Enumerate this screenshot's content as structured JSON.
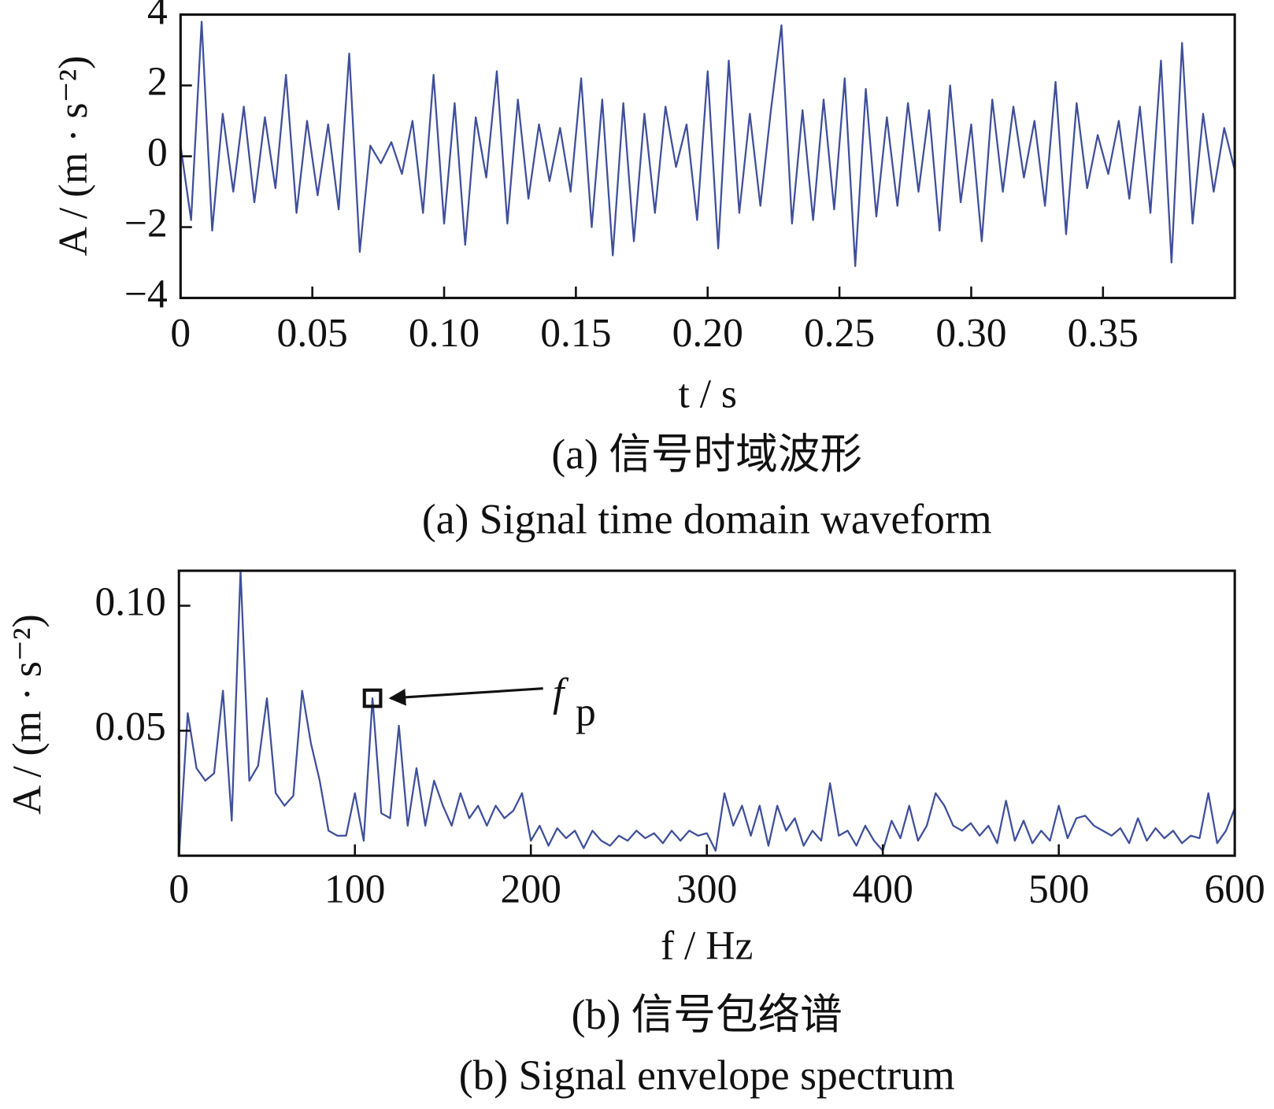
{
  "chart_data": [
    {
      "type": "line",
      "color": "#3f4f9a",
      "xlim": [
        0,
        0.4
      ],
      "ylim": [
        -4,
        4
      ],
      "xticks": [
        0,
        {
          "value": 0.05,
          "label": "0.05"
        },
        {
          "value": 0.1,
          "label": "0.10"
        },
        {
          "value": 0.15,
          "label": "0.15"
        },
        {
          "value": 0.2,
          "label": "0.20"
        },
        {
          "value": 0.25,
          "label": "0.25"
        },
        {
          "value": 0.3,
          "label": "0.30"
        },
        {
          "value": 0.35,
          "label": "0.35"
        }
      ],
      "yticks": [
        {
          "value": -4,
          "label": "−4"
        },
        {
          "value": -2,
          "label": "−2"
        },
        0,
        2,
        4
      ],
      "xlabel": "t / s",
      "ylabel": "A / (m · s⁻²)",
      "caption_cn": "(a)  信号时域波形",
      "caption_en": "(a)  Signal time domain waveform",
      "x": [
        0,
        0.004,
        0.008,
        0.012,
        0.016,
        0.02,
        0.024,
        0.028,
        0.032,
        0.036,
        0.04,
        0.044,
        0.048,
        0.052,
        0.056,
        0.06,
        0.064,
        0.068,
        0.072,
        0.076,
        0.08,
        0.084,
        0.088,
        0.092,
        0.096,
        0.1,
        0.104,
        0.108,
        0.112,
        0.116,
        0.12,
        0.124,
        0.128,
        0.132,
        0.136,
        0.14,
        0.144,
        0.148,
        0.152,
        0.156,
        0.16,
        0.164,
        0.168,
        0.172,
        0.176,
        0.18,
        0.184,
        0.188,
        0.192,
        0.196,
        0.2,
        0.204,
        0.208,
        0.212,
        0.216,
        0.22,
        0.224,
        0.228,
        0.232,
        0.236,
        0.24,
        0.244,
        0.248,
        0.252,
        0.256,
        0.26,
        0.264,
        0.268,
        0.272,
        0.276,
        0.28,
        0.284,
        0.288,
        0.292,
        0.296,
        0.3,
        0.304,
        0.308,
        0.312,
        0.316,
        0.32,
        0.324,
        0.328,
        0.332,
        0.336,
        0.34,
        0.344,
        0.348,
        0.352,
        0.356,
        0.36,
        0.364,
        0.368,
        0.372,
        0.376,
        0.38,
        0.384,
        0.388,
        0.392,
        0.396,
        0.4
      ],
      "values": [
        0.3,
        -1.8,
        3.8,
        -2.1,
        1.2,
        -1.0,
        1.4,
        -1.3,
        1.1,
        -0.9,
        2.3,
        -1.6,
        1.0,
        -1.1,
        0.9,
        -1.5,
        2.9,
        -2.7,
        0.3,
        -0.2,
        0.4,
        -0.5,
        1.0,
        -1.6,
        2.3,
        -1.9,
        1.5,
        -2.5,
        1.1,
        -0.6,
        2.4,
        -1.9,
        1.6,
        -1.2,
        0.9,
        -0.7,
        0.8,
        -1.0,
        2.2,
        -2.0,
        1.6,
        -2.8,
        1.5,
        -2.4,
        1.2,
        -1.6,
        1.4,
        -0.3,
        0.9,
        -1.8,
        2.4,
        -2.6,
        2.7,
        -1.6,
        1.2,
        -1.4,
        1.3,
        3.7,
        -1.9,
        1.3,
        -1.8,
        1.6,
        -1.5,
        2.2,
        -3.1,
        1.9,
        -1.7,
        1.1,
        -1.4,
        1.5,
        -1.0,
        1.3,
        -2.1,
        2.0,
        -1.3,
        0.9,
        -2.4,
        1.6,
        -1.0,
        1.4,
        -0.6,
        1.0,
        -1.4,
        2.1,
        -2.2,
        1.5,
        -0.9,
        0.6,
        -0.5,
        1.0,
        -1.2,
        1.4,
        -1.6,
        2.7,
        -3.0,
        3.2,
        -1.9,
        1.2,
        -1.0,
        0.8,
        -0.4
      ]
    },
    {
      "type": "line",
      "color": "#3f4f9a",
      "xlim": [
        0,
        600
      ],
      "ylim": [
        0,
        0.114
      ],
      "xticks": [
        0,
        100,
        200,
        300,
        400,
        500,
        600
      ],
      "yticks": [
        {
          "value": 0.05,
          "label": "0.05"
        },
        {
          "value": 0.1,
          "label": "0.10"
        }
      ],
      "xlabel": "f / Hz",
      "ylabel": "A / (m · s⁻²)",
      "caption_cn": "(b)  信号包络谱",
      "caption_en": "(b)  Signal envelope spectrum",
      "annotation": {
        "label": "f",
        "subscript": "p",
        "x": 110,
        "y": 0.063
      },
      "x": [
        0,
        5,
        10,
        15,
        20,
        25,
        30,
        35,
        40,
        45,
        50,
        55,
        60,
        65,
        70,
        75,
        80,
        85,
        90,
        95,
        100,
        105,
        110,
        115,
        120,
        125,
        130,
        135,
        140,
        145,
        150,
        155,
        160,
        165,
        170,
        175,
        180,
        185,
        190,
        195,
        200,
        205,
        210,
        215,
        220,
        225,
        230,
        235,
        240,
        245,
        250,
        255,
        260,
        265,
        270,
        275,
        280,
        285,
        290,
        295,
        300,
        305,
        310,
        315,
        320,
        325,
        330,
        335,
        340,
        345,
        350,
        355,
        360,
        365,
        370,
        375,
        380,
        385,
        390,
        395,
        400,
        405,
        410,
        415,
        420,
        425,
        430,
        435,
        440,
        445,
        450,
        455,
        460,
        465,
        470,
        475,
        480,
        485,
        490,
        495,
        500,
        505,
        510,
        515,
        520,
        525,
        530,
        535,
        540,
        545,
        550,
        555,
        560,
        565,
        570,
        575,
        580,
        585,
        590,
        595,
        600
      ],
      "values": [
        0.0,
        0.057,
        0.035,
        0.03,
        0.033,
        0.066,
        0.014,
        0.114,
        0.03,
        0.036,
        0.063,
        0.025,
        0.02,
        0.024,
        0.066,
        0.045,
        0.03,
        0.01,
        0.008,
        0.008,
        0.025,
        0.006,
        0.063,
        0.017,
        0.015,
        0.052,
        0.012,
        0.035,
        0.012,
        0.03,
        0.02,
        0.012,
        0.025,
        0.015,
        0.02,
        0.012,
        0.02,
        0.015,
        0.018,
        0.025,
        0.006,
        0.012,
        0.004,
        0.011,
        0.007,
        0.01,
        0.003,
        0.01,
        0.006,
        0.004,
        0.008,
        0.006,
        0.01,
        0.007,
        0.009,
        0.005,
        0.01,
        0.006,
        0.01,
        0.008,
        0.009,
        0.002,
        0.025,
        0.012,
        0.02,
        0.008,
        0.02,
        0.004,
        0.02,
        0.01,
        0.015,
        0.004,
        0.01,
        0.006,
        0.029,
        0.008,
        0.01,
        0.004,
        0.012,
        0.006,
        0.002,
        0.014,
        0.007,
        0.02,
        0.006,
        0.012,
        0.025,
        0.02,
        0.012,
        0.01,
        0.013,
        0.008,
        0.012,
        0.005,
        0.022,
        0.006,
        0.014,
        0.005,
        0.01,
        0.006,
        0.02,
        0.007,
        0.015,
        0.016,
        0.012,
        0.01,
        0.008,
        0.011,
        0.005,
        0.015,
        0.006,
        0.011,
        0.007,
        0.01,
        0.005,
        0.008,
        0.007,
        0.025,
        0.005,
        0.01,
        0.019
      ]
    }
  ]
}
